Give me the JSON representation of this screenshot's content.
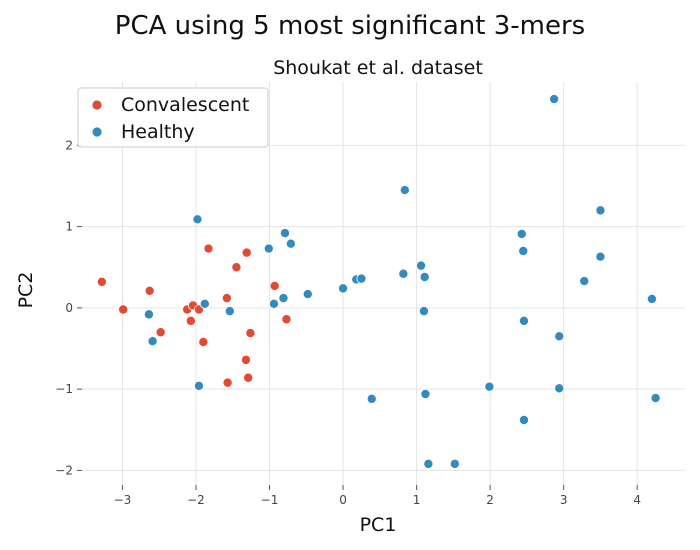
{
  "chart_data": {
    "type": "scatter",
    "suptitle": "PCA using 5 most significant 3-mers",
    "title": "Shoukat et al. dataset",
    "xlabel": "PC1",
    "ylabel": "PC2",
    "xlim": [
      -3.55,
      4.65
    ],
    "ylim": [
      -2.18,
      2.78
    ],
    "xticks": [
      -3,
      -2,
      -1,
      0,
      1,
      2,
      3,
      4
    ],
    "yticks": [
      -2,
      -1,
      0,
      1,
      2
    ],
    "grid": true,
    "legend_position": "upper-left",
    "series": [
      {
        "name": "Convalescent",
        "color": "#e24a33",
        "points": [
          [
            -3.28,
            0.32
          ],
          [
            -2.99,
            -0.02
          ],
          [
            -2.63,
            0.21
          ],
          [
            -2.48,
            -0.3
          ],
          [
            -2.12,
            -0.02
          ],
          [
            -2.07,
            -0.16
          ],
          [
            -2.04,
            0.03
          ],
          [
            -1.96,
            -0.02
          ],
          [
            -1.9,
            -0.42
          ],
          [
            -1.83,
            0.73
          ],
          [
            -1.58,
            0.12
          ],
          [
            -1.57,
            -0.92
          ],
          [
            -1.45,
            0.5
          ],
          [
            -1.32,
            -0.64
          ],
          [
            -1.31,
            0.68
          ],
          [
            -1.29,
            -0.86
          ],
          [
            -1.26,
            -0.31
          ],
          [
            -0.93,
            0.27
          ],
          [
            -0.77,
            -0.14
          ]
        ]
      },
      {
        "name": "Healthy",
        "color": "#348abd",
        "points": [
          [
            -2.64,
            -0.08
          ],
          [
            -2.59,
            -0.41
          ],
          [
            -1.98,
            1.09
          ],
          [
            -1.96,
            -0.96
          ],
          [
            -1.88,
            0.05
          ],
          [
            -1.54,
            -0.04
          ],
          [
            -1.01,
            0.73
          ],
          [
            -0.94,
            0.05
          ],
          [
            -0.81,
            0.12
          ],
          [
            -0.79,
            0.92
          ],
          [
            -0.71,
            0.79
          ],
          [
            -0.48,
            0.17
          ],
          [
            0.0,
            0.24
          ],
          [
            0.18,
            0.35
          ],
          [
            0.25,
            0.36
          ],
          [
            0.39,
            -1.12
          ],
          [
            0.82,
            0.42
          ],
          [
            0.84,
            1.45
          ],
          [
            1.06,
            0.52
          ],
          [
            1.1,
            -0.04
          ],
          [
            1.11,
            0.38
          ],
          [
            1.12,
            -1.06
          ],
          [
            1.16,
            -1.92
          ],
          [
            1.52,
            -1.92
          ],
          [
            1.99,
            -0.97
          ],
          [
            2.43,
            0.91
          ],
          [
            2.45,
            0.7
          ],
          [
            2.46,
            -0.16
          ],
          [
            2.46,
            -1.38
          ],
          [
            2.87,
            2.57
          ],
          [
            2.94,
            -0.35
          ],
          [
            2.94,
            -0.99
          ],
          [
            3.28,
            0.33
          ],
          [
            3.5,
            1.2
          ],
          [
            3.5,
            0.63
          ],
          [
            4.2,
            0.11
          ],
          [
            4.25,
            -1.11
          ]
        ]
      }
    ]
  }
}
